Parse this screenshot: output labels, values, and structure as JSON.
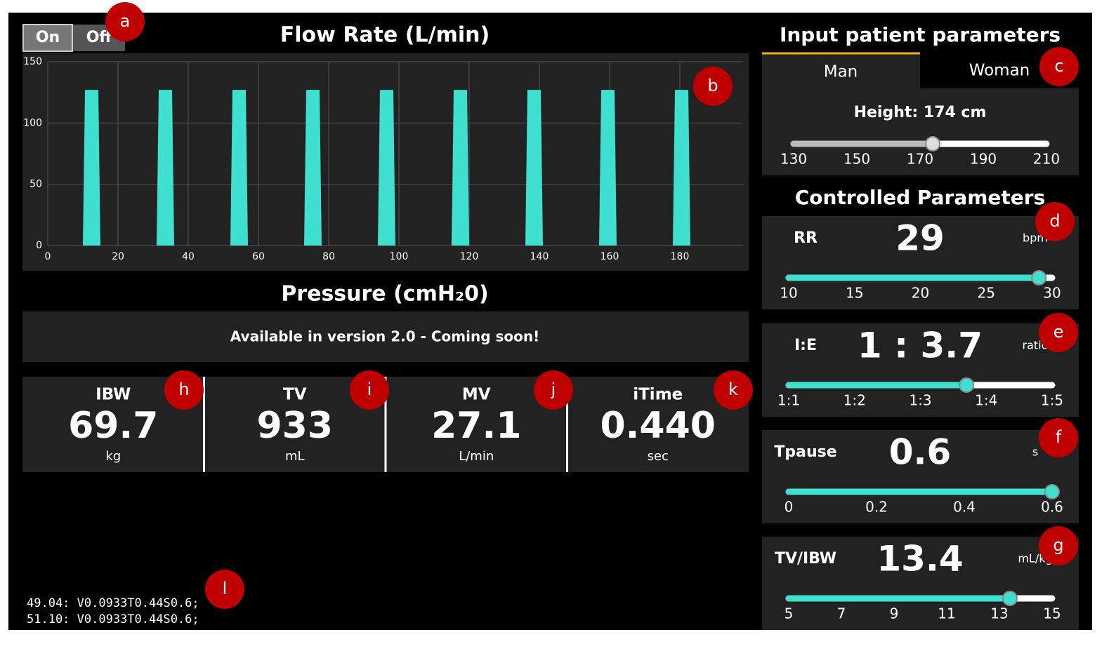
{
  "toggle": {
    "on": "On",
    "off": "Off"
  },
  "flow_chart": {
    "type": "area",
    "title": "Flow Rate (L/min)",
    "color": "#40e0d0",
    "x": [
      10,
      10.6,
      14.4,
      15,
      31,
      31.6,
      35.4,
      36,
      52,
      52.6,
      56.4,
      57,
      73,
      73.6,
      77.4,
      78,
      94,
      94.6,
      98.4,
      99,
      115,
      115.6,
      119.4,
      120,
      136,
      136.6,
      140.4,
      141,
      157,
      157.6,
      161.4,
      162,
      178,
      178.6,
      182.4,
      183
    ],
    "values": [
      0,
      127,
      127,
      0,
      0,
      127,
      127,
      0,
      0,
      127,
      127,
      0,
      0,
      127,
      127,
      0,
      0,
      127,
      127,
      0,
      0,
      127,
      127,
      0,
      0,
      127,
      127,
      0,
      0,
      127,
      127,
      0,
      0,
      127,
      127,
      0
    ],
    "xlim": [
      0,
      198
    ],
    "ylim": [
      0,
      150
    ],
    "xticks": [
      0,
      20,
      40,
      60,
      80,
      100,
      120,
      140,
      160,
      180
    ],
    "yticks": [
      0,
      50,
      100,
      150
    ],
    "grid": true
  },
  "pressure": {
    "title": "Pressure (cmH₂0)",
    "message": "Available in version 2.0 - Coming soon!"
  },
  "metrics": [
    {
      "label": "IBW",
      "value": "69.7",
      "unit": "kg"
    },
    {
      "label": "TV",
      "value": "933",
      "unit": "mL"
    },
    {
      "label": "MV",
      "value": "27.1",
      "unit": "L/min"
    },
    {
      "label": "iTime",
      "value": "0.440",
      "unit": "sec"
    }
  ],
  "patient": {
    "title": "Input patient parameters",
    "tabs": [
      "Man",
      "Woman"
    ],
    "height": {
      "label": "Height: 174 cm",
      "value": 174,
      "range": [
        130,
        210
      ],
      "ticks": [
        130,
        150,
        170,
        190,
        210
      ]
    }
  },
  "controls": {
    "title": "Controlled Parameters",
    "items": [
      {
        "name": "RR",
        "display": "29",
        "unit": "bpm",
        "value": 29,
        "range": [
          10,
          30
        ],
        "ticks": [
          10,
          15,
          20,
          25,
          30
        ]
      },
      {
        "name": "I:E",
        "display": "1 : 3.7",
        "unit": "ratio",
        "value": 3.7,
        "range": [
          1,
          5
        ],
        "ticks": [
          {
            "value": 1,
            "label": "1:1"
          },
          {
            "value": 2,
            "label": "1:2"
          },
          {
            "value": 3,
            "label": "1:3"
          },
          {
            "value": 4,
            "label": "1:4"
          },
          {
            "value": 5,
            "label": "1:5"
          }
        ]
      },
      {
        "name": "Tpause",
        "display": "0.6",
        "unit": "s",
        "value": 0.6,
        "range": [
          0,
          0.6
        ],
        "ticks": [
          0,
          0.2,
          0.4,
          0.6
        ]
      },
      {
        "name": "TV/IBW",
        "display": "13.4",
        "unit": "mL/kg",
        "value": 13.4,
        "range": [
          5,
          15
        ],
        "ticks": [
          5,
          7,
          9,
          11,
          13,
          15
        ]
      }
    ]
  },
  "log": [
    "49.04: V0.0933T0.44S0.6;",
    "51.10: V0.0933T0.44S0.6;"
  ],
  "annotations": [
    "a",
    "b",
    "c",
    "d",
    "e",
    "f",
    "g",
    "h",
    "i",
    "j",
    "k",
    "l"
  ]
}
